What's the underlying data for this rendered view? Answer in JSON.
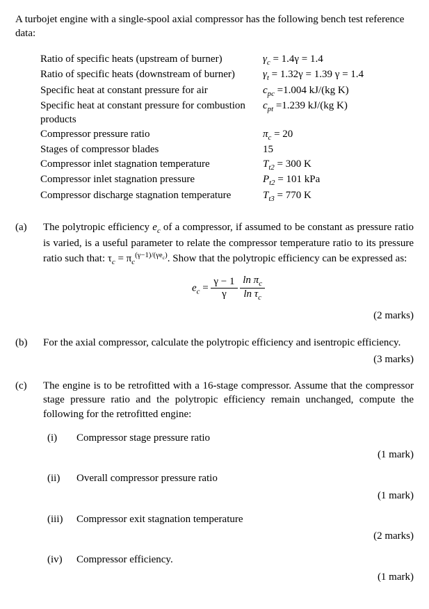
{
  "intro": "A turbojet engine with a single-spool axial compressor has the following bench test reference data:",
  "labels": {
    "gamma_c": "Ratio of specific heats (upstream of burner)",
    "gamma_t": "Ratio of specific heats (downstream of burner)",
    "cpc": "Specific heat at constant pressure for air",
    "cpt": "Specific heat at constant pressure for combustion products",
    "pic": "Compressor pressure ratio",
    "stages": "Stages of compressor blades",
    "Tt2": "Compressor inlet stagnation temperature",
    "Pt2": "Compressor inlet stagnation pressure",
    "Tt3": "Compressor discharge stagnation temperature"
  },
  "vals": {
    "gamma_c_pre": "γ",
    "gamma_c_sub": "c",
    "gamma_c_val": " = 1.4γ = 1.4",
    "gamma_t_pre": "γ",
    "gamma_t_sub": "t",
    "gamma_t_val": " = 1.32γ = 1.39 γ = 1.4",
    "cpc_pre": "c",
    "cpc_sub": "pc",
    "cpc_val": " =1.004 kJ/(kg K)",
    "cpt_pre": "c",
    "cpt_sub": "pt",
    "cpt_val": " =1.239 kJ/(kg K)",
    "pic_pre": "π",
    "pic_sub": "c",
    "pic_val": " = 20",
    "stages": "15",
    "Tt2_pre": "T",
    "Tt2_sub": "t2",
    "Tt2_val": " = 300 K",
    "Pt2_pre": "P",
    "Pt2_sub": "t2",
    "Pt2_val": " = 101 kPa",
    "Tt3_pre": "T",
    "Tt3_sub": "t3",
    "Tt3_val": " = 770 K"
  },
  "a": {
    "label": "(a)",
    "text1": "The polytropic efficiency ",
    "ec_sym": "e",
    "ec_sub": "c",
    "text2": " of a compressor, if assumed to be constant as pressure ratio is varied, is a useful parameter to relate the compressor temperature ratio to its pressure ratio such that: τ",
    "tau_sub": "c",
    "text3": " = π",
    "pi_sub": "c",
    "exp": "(γ−1)/(γe",
    "exp_sub": "c",
    "exp2": ")",
    "text4": ". Show that the polytropic efficiency can be expressed as:",
    "eq_lhs": "e",
    "eq_lhs_sub": "c",
    "eq_mid": " = ",
    "num1": "γ − 1",
    "den1": "γ",
    "num2_pre": "ln π",
    "num2_sub": "c",
    "den2_pre": "ln τ",
    "den2_sub": "c",
    "marks": "(2 marks)"
  },
  "b": {
    "label": "(b)",
    "text": "For the axial compressor, calculate the polytropic efficiency and isentropic efficiency.",
    "marks": "(3 marks)"
  },
  "c": {
    "label": "(c)",
    "text": "The engine is to be retrofitted with a 16-stage compressor. Assume that the compressor stage pressure ratio and the polytropic efficiency remain unchanged, compute the following for the retrofitted engine:",
    "i": {
      "label": "(i)",
      "text": "Compressor stage pressure ratio",
      "marks": "(1 mark)"
    },
    "ii": {
      "label": "(ii)",
      "text": "Overall compressor pressure ratio",
      "marks": "(1 mark)"
    },
    "iii": {
      "label": "(iii)",
      "text": "Compressor exit stagnation temperature",
      "marks": "(2 marks)"
    },
    "iv": {
      "label": "(iv)",
      "text": "Compressor efficiency.",
      "marks": "(1 mark)"
    }
  }
}
